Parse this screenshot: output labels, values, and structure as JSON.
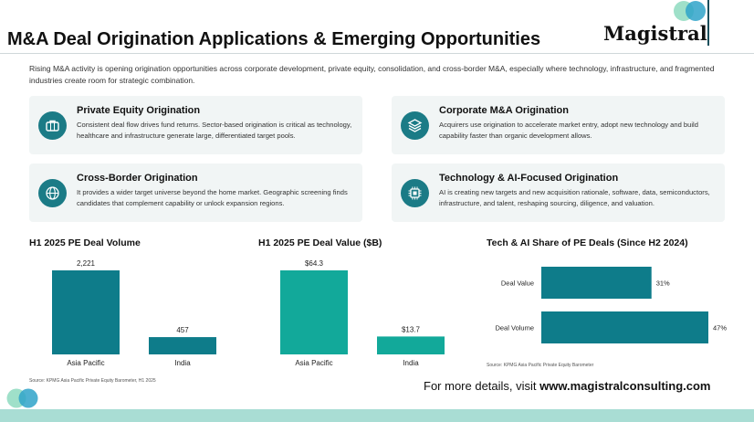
{
  "header": {
    "title": "M&A Deal Origination Applications & Emerging Opportunities",
    "logo": "Magistral"
  },
  "intro": "Rising M&A activity is opening origination opportunities across corporate development, private equity, consolidation, and cross-border M&A, especially where technology, infrastructure, and fragmented industries create room for strategic combination.",
  "cards": [
    {
      "icon": "briefcase-icon",
      "title": "Private Equity Origination",
      "desc": "Consistent deal flow drives fund returns. Sector-based origination is critical as technology, healthcare and infrastructure generate large, differentiated target pools."
    },
    {
      "icon": "layers-icon",
      "title": "Corporate M&A Origination",
      "desc": "Acquirers use origination to accelerate market entry, adopt new technology and build capability faster than organic development allows."
    },
    {
      "icon": "globe-icon",
      "title": "Cross-Border Origination",
      "desc": "It provides a wider target universe beyond the home market. Geographic screening finds candidates that complement capability or unlock expansion regions."
    },
    {
      "icon": "chip-icon",
      "title": "Technology & AI-Focused Origination",
      "desc": "AI is creating new targets and new acquisition rationale, software, data, semiconductors, infrastructure, and talent, reshaping sourcing, diligence, and valuation."
    }
  ],
  "colors": {
    "teal_dark": "#0e7c8a",
    "teal_light": "#12a99a",
    "navy": "#1b4f5c"
  },
  "chart_data": [
    {
      "type": "bar",
      "title": "H1 2025 PE Deal Volume",
      "categories": [
        "Asia Pacific",
        "India"
      ],
      "values": [
        2221,
        457
      ],
      "labels": [
        "2,221",
        "457"
      ],
      "color": "#0e7c8a"
    },
    {
      "type": "bar",
      "title": "H1 2025 PE Deal Value ($B)",
      "categories": [
        "Asia Pacific",
        "India"
      ],
      "values": [
        64.3,
        13.7
      ],
      "labels": [
        "$64.3",
        "$13.7"
      ],
      "color": "#12a99a"
    },
    {
      "type": "bar",
      "orientation": "horizontal",
      "title": "Tech & AI Share of PE Deals (Since H2 2024)",
      "categories": [
        "Deal Value",
        "Deal Volume"
      ],
      "values": [
        31,
        47
      ],
      "labels": [
        "31%",
        "47%"
      ],
      "color": "#0e7c8a"
    }
  ],
  "sources": {
    "left": "Source: KPMG Asia Pacific Private Equity Barometer, H1 2025",
    "right": "Source: KPMG Asia Pacific Private Equity Barometer"
  },
  "footer": {
    "prefix": "For more details, visit ",
    "url": "www.magistralconsulting.com"
  }
}
